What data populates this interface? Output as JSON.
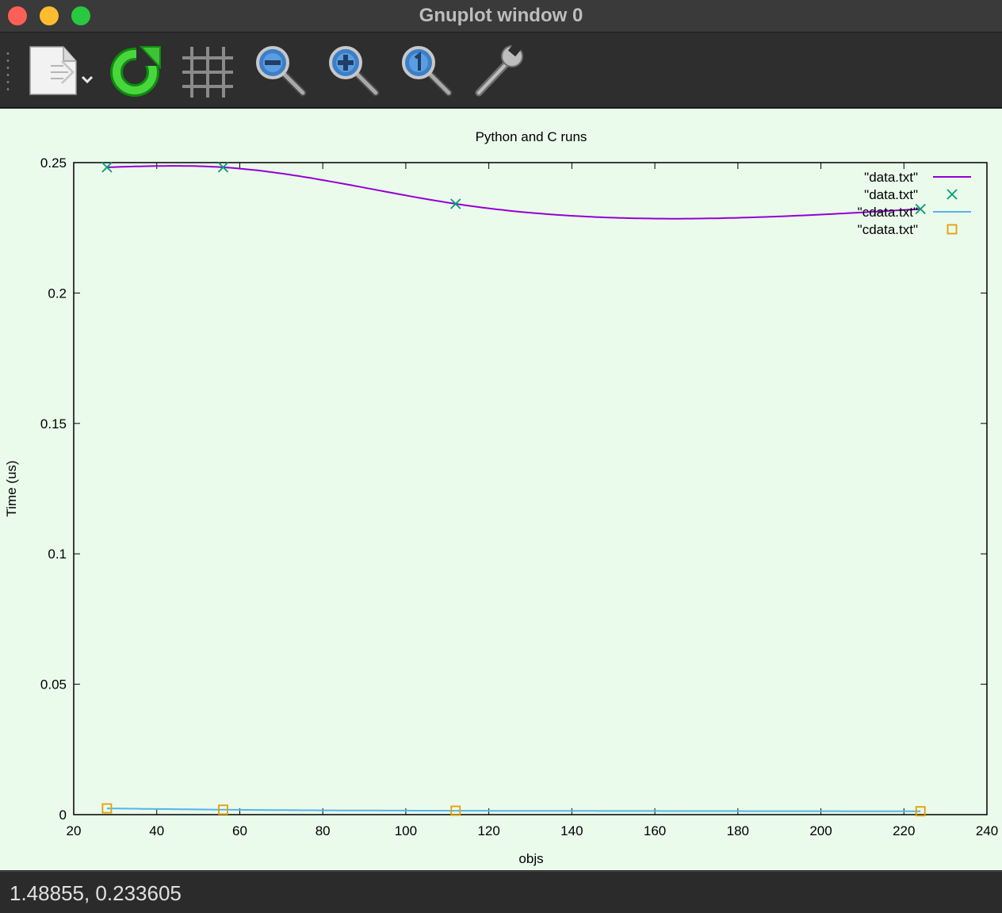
{
  "window": {
    "title": "Gnuplot window 0"
  },
  "toolbar": {
    "tools": [
      "export-icon",
      "replot-icon",
      "grid-icon",
      "zoom-out-icon",
      "zoom-in-icon",
      "zoom-reset-icon",
      "settings-icon"
    ]
  },
  "status": {
    "coordinates": "1.48855, 0.233605"
  },
  "colors": {
    "background": "#eafaeb",
    "series1": "#9400d3",
    "series2": "#009e73",
    "series3": "#56b4e9",
    "series4": "#e69f00"
  },
  "chart_data": {
    "type": "line",
    "title": "Python and C runs",
    "xlabel": "objs",
    "ylabel": "Time (us)",
    "xlim": [
      20,
      240
    ],
    "ylim": [
      0,
      0.25
    ],
    "xticks": [
      "20",
      "40",
      "60",
      "80",
      "100",
      "120",
      "140",
      "160",
      "180",
      "200",
      "220",
      "240"
    ],
    "yticks": [
      "0",
      "0.05",
      "0.1",
      "0.15",
      "0.2",
      "0.25"
    ],
    "legend_position": "top-right",
    "series": [
      {
        "name": "\"data.txt\"",
        "style": "smooth-line",
        "color": "#9400d3",
        "x": [
          28,
          56,
          112,
          224
        ],
        "y": [
          0.2482,
          0.2482,
          0.2342,
          0.2322
        ]
      },
      {
        "name": "\"data.txt\"",
        "style": "points-x",
        "color": "#009e73",
        "x": [
          28,
          56,
          112,
          224
        ],
        "y": [
          0.2482,
          0.2482,
          0.2342,
          0.2322
        ]
      },
      {
        "name": "\"cdata.txt\"",
        "style": "smooth-line",
        "color": "#56b4e9",
        "x": [
          28,
          56,
          112,
          224
        ],
        "y": [
          0.0024,
          0.0019,
          0.0015,
          0.0013
        ]
      },
      {
        "name": "\"cdata.txt\"",
        "style": "points-square",
        "color": "#e69f00",
        "x": [
          28,
          56,
          112,
          224
        ],
        "y": [
          0.0024,
          0.0019,
          0.0015,
          0.0013
        ]
      }
    ]
  }
}
